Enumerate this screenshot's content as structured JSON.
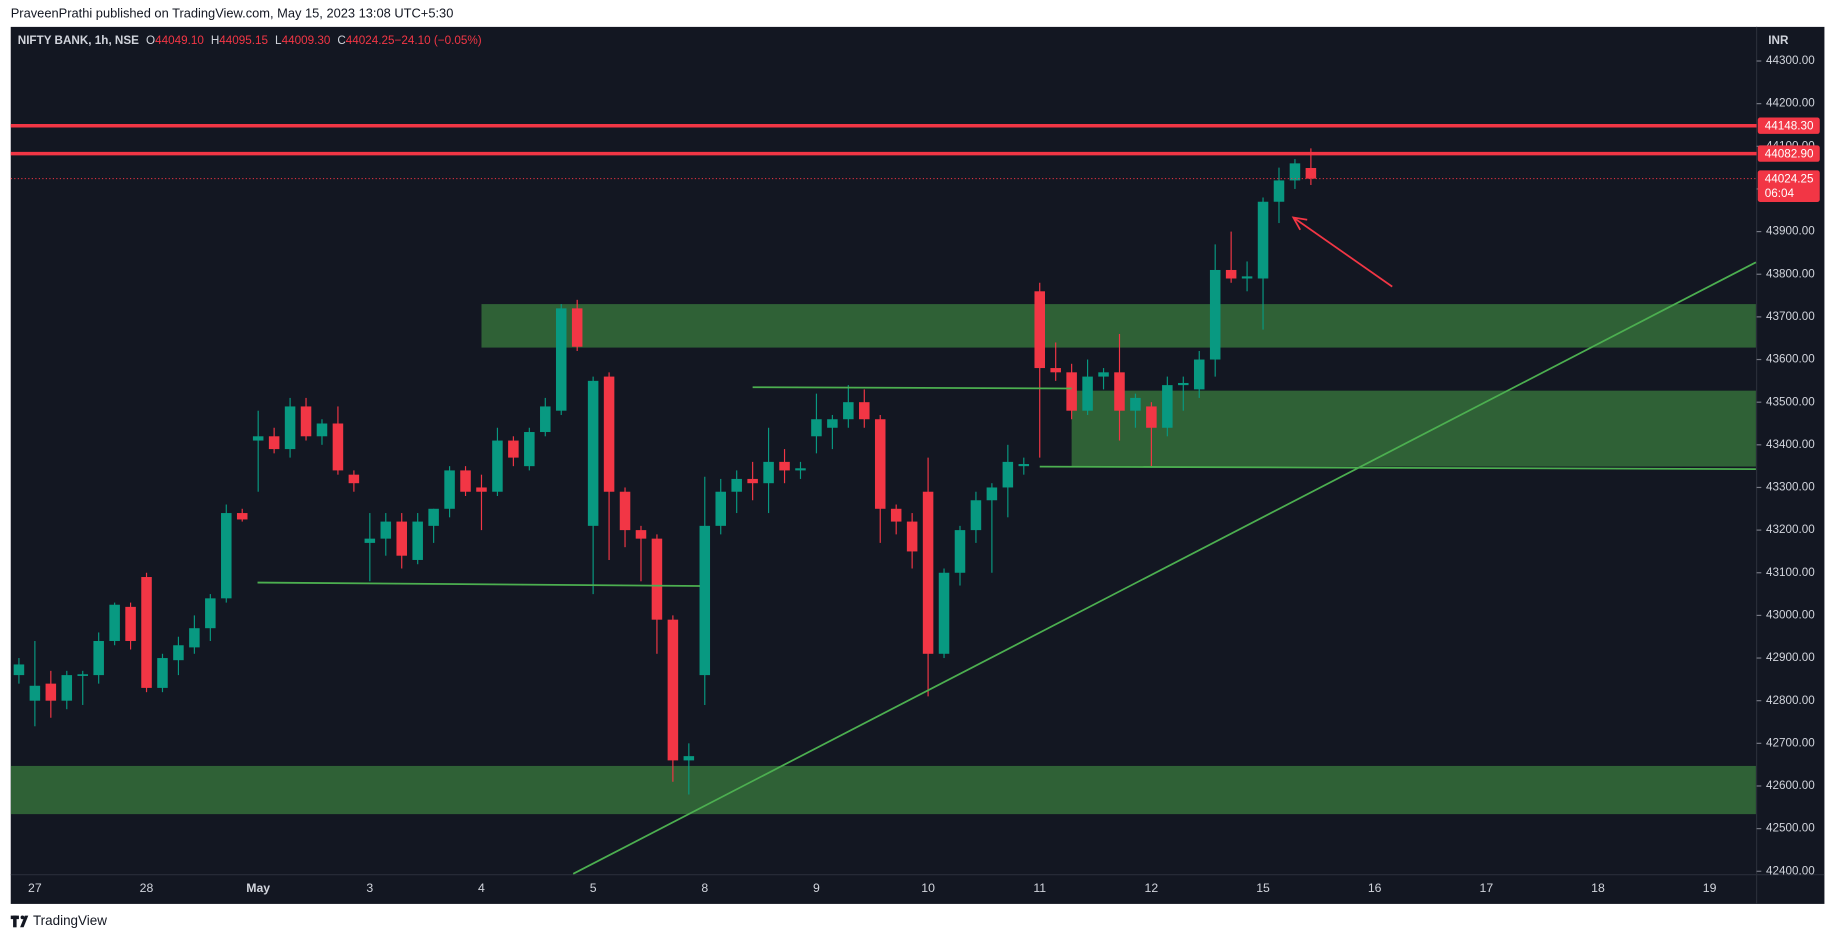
{
  "publisher": "PraveenPrathi published on TradingView.com, May 15, 2023 13:08 UTC+5:30",
  "brand": "TradingView",
  "chart_data": {
    "type": "candlestick",
    "title": "NIFTY BANK, 1h, NSE",
    "ohlc_header": [
      {
        "key": "O",
        "text": "44049.10"
      },
      {
        "key": "H",
        "text": "44095.15"
      },
      {
        "key": "L",
        "text": "44009.30"
      },
      {
        "key": "C",
        "text": "44024.25"
      },
      {
        "key": "",
        "text": "−24.10 (−0.05%)"
      }
    ],
    "currency": "INR",
    "up_color": "#089981",
    "down_color": "#f23645",
    "grid": false,
    "categories": [
      null,
      "27",
      null,
      null,
      null,
      null,
      null,
      null,
      "28",
      null,
      null,
      null,
      null,
      null,
      null,
      "May",
      null,
      null,
      null,
      null,
      null,
      null,
      "3",
      null,
      null,
      null,
      null,
      null,
      null,
      "4",
      null,
      null,
      null,
      null,
      null,
      null,
      "5",
      null,
      null,
      null,
      null,
      null,
      null,
      "8",
      null,
      null,
      null,
      null,
      null,
      null,
      "9",
      null,
      null,
      null,
      null,
      null,
      null,
      "10",
      null,
      null,
      null,
      null,
      null,
      null,
      "11",
      null,
      null,
      null,
      null,
      null,
      null,
      "12",
      null,
      null,
      null,
      null,
      null,
      null,
      "15",
      null,
      null,
      null,
      null,
      null,
      null,
      "16",
      null,
      null,
      null,
      null,
      null,
      null,
      "17",
      null,
      null,
      null,
      null,
      null,
      null,
      "18",
      null,
      null,
      null,
      null,
      null,
      null,
      "19",
      null,
      null
    ],
    "open": [
      42860,
      42800,
      42840,
      42800,
      42858,
      42860,
      42940,
      43020,
      43090,
      42830,
      42895,
      42925,
      42970,
      43040,
      43240,
      43410,
      43420,
      43390,
      43490,
      43420,
      43450,
      43330,
      43170,
      43180,
      43220,
      43130,
      43210,
      43250,
      43340,
      43300,
      43290,
      43410,
      43350,
      43430,
      43480,
      43720,
      43210,
      43560,
      43290,
      43200,
      43180,
      42990,
      42660,
      42860,
      43210,
      43290,
      43320,
      43310,
      43360,
      43340,
      43420,
      43440,
      43460,
      43500,
      43460,
      43250,
      43220,
      43290,
      42910,
      43100,
      43200,
      43270,
      43300,
      43350,
      43760,
      43580,
      43570,
      43480,
      43560,
      43570,
      43480,
      43490,
      43440,
      43540,
      43530,
      43600,
      43810,
      43790,
      43790,
      43970,
      44020,
      44049.1,
      null,
      null,
      null,
      null,
      null,
      null,
      null,
      null,
      null,
      null,
      null,
      null,
      null,
      null,
      null,
      null,
      null,
      null,
      null,
      null,
      null,
      null,
      null,
      null,
      null,
      null,
      null
    ],
    "high": [
      42900,
      42940,
      42870,
      42870,
      42870,
      42960,
      43030,
      43030,
      43100,
      42910,
      42950,
      43000,
      43050,
      43260,
      43250,
      43480,
      43440,
      43510,
      43510,
      43460,
      43490,
      43340,
      43240,
      43240,
      43240,
      43240,
      43250,
      43350,
      43350,
      43330,
      43440,
      43420,
      43440,
      43510,
      43730,
      43740,
      43560,
      43570,
      43300,
      43210,
      43190,
      43000,
      42700,
      43325,
      43320,
      43340,
      43360,
      43440,
      43390,
      43360,
      43520,
      43470,
      43540,
      43530,
      43470,
      43260,
      43240,
      43370,
      43110,
      43210,
      43290,
      43310,
      43400,
      43370,
      43780,
      43640,
      43590,
      43600,
      43580,
      43660,
      43520,
      43500,
      43560,
      43560,
      43620,
      43870,
      43900,
      43830,
      43980,
      44050,
      44070,
      44095.15,
      null,
      null,
      null,
      null,
      null,
      null,
      null,
      null,
      null,
      null,
      null,
      null,
      null,
      null,
      null,
      null,
      null,
      null,
      null,
      null,
      null,
      null,
      null,
      null,
      null,
      null,
      null
    ],
    "low": [
      42840,
      42740,
      42760,
      42780,
      42790,
      42840,
      42930,
      42920,
      42820,
      42820,
      42860,
      42910,
      42940,
      43030,
      43220,
      43290,
      43380,
      43370,
      43410,
      43400,
      43330,
      43290,
      43080,
      43140,
      43110,
      43120,
      43170,
      43230,
      43280,
      43200,
      43280,
      43350,
      43340,
      43420,
      43470,
      43620,
      43050,
      43130,
      43160,
      43080,
      42910,
      42610,
      42580,
      42790,
      43190,
      43240,
      43270,
      43240,
      43310,
      43320,
      43380,
      43390,
      43440,
      43440,
      43170,
      43190,
      43110,
      42810,
      42900,
      43070,
      43170,
      43100,
      43230,
      43330,
      43370,
      43550,
      43460,
      43470,
      43530,
      43410,
      43440,
      43350,
      43420,
      43480,
      43510,
      43560,
      43780,
      43760,
      43670,
      43920,
      44000,
      44009.3,
      null,
      null,
      null,
      null,
      null,
      null,
      null,
      null,
      null,
      null,
      null,
      null,
      null,
      null,
      null,
      null,
      null,
      null,
      null,
      null,
      null,
      null,
      null,
      null,
      null,
      null,
      null
    ],
    "close": [
      42885,
      42835,
      42800,
      42860,
      42862,
      42940,
      43025,
      42940,
      42830,
      42900,
      42930,
      42970,
      43040,
      43240,
      43225,
      43420,
      43390,
      43490,
      43420,
      43450,
      43340,
      43310,
      43180,
      43220,
      43140,
      43220,
      43250,
      43340,
      43290,
      43290,
      43410,
      43370,
      43430,
      43490,
      43720,
      43630,
      43550,
      43290,
      43200,
      43180,
      42990,
      42660,
      42670,
      43210,
      43290,
      43320,
      43310,
      43360,
      43340,
      43345,
      43460,
      43460,
      43500,
      43460,
      43250,
      43220,
      43150,
      42910,
      43100,
      43200,
      43270,
      43300,
      43360,
      43355,
      43580,
      43570,
      43480,
      43560,
      43570,
      43480,
      43510,
      43440,
      43540,
      43545,
      43600,
      43810,
      43790,
      43795,
      43970,
      44020,
      44060,
      44024.25,
      null,
      null,
      null,
      null,
      null,
      null,
      null,
      null,
      null,
      null,
      null,
      null,
      null,
      null,
      null,
      null,
      null,
      null,
      null,
      null,
      null,
      null,
      null,
      null,
      null,
      null,
      null
    ],
    "ylim": [
      42392,
      44380
    ],
    "yticks": [
      {
        "value": 42400,
        "label": "42400.00"
      },
      {
        "value": 42500,
        "label": "42500.00"
      },
      {
        "value": 42600,
        "label": "42600.00"
      },
      {
        "value": 42700,
        "label": "42700.00"
      },
      {
        "value": 42800,
        "label": "42800.00"
      },
      {
        "value": 42900,
        "label": "42900.00"
      },
      {
        "value": 43000,
        "label": "43000.00"
      },
      {
        "value": 43100,
        "label": "43100.00"
      },
      {
        "value": 43200,
        "label": "43200.00"
      },
      {
        "value": 43300,
        "label": "43300.00"
      },
      {
        "value": 43400,
        "label": "43400.00"
      },
      {
        "value": 43500,
        "label": "43500.00"
      },
      {
        "value": 43600,
        "label": "43600.00"
      },
      {
        "value": 43700,
        "label": "43700.00"
      },
      {
        "value": 43800,
        "label": "43800.00"
      },
      {
        "value": 43900,
        "label": "43900.00"
      },
      {
        "value": 44000,
        "label": "44000.00"
      },
      {
        "value": 44100,
        "label": "44100.00"
      },
      {
        "value": 44200,
        "label": "44200.00"
      },
      {
        "value": 44300,
        "label": "44300.00"
      }
    ],
    "zones": [
      {
        "x": [
          29.0,
          108.9
        ],
        "y": [
          43628,
          43730
        ],
        "color": "#2f6136"
      },
      {
        "x": [
          66.0,
          108.9
        ],
        "y": [
          43349,
          43527
        ],
        "color": "#2f6136"
      },
      {
        "x": [
          -0.5,
          108.9
        ],
        "y": [
          42534,
          42647
        ],
        "color": "#2f6136"
      }
    ],
    "lines": [
      {
        "x": [
          34.75,
          108.9
        ],
        "y": [
          42394,
          43828
        ],
        "color": "#4caf50"
      },
      {
        "x": [
          14.96,
          42.7
        ],
        "y": [
          43077,
          43069
        ],
        "color": "#4caf50"
      },
      {
        "x": [
          46.0,
          66.0
        ],
        "y": [
          43535,
          43532
        ],
        "color": "#4caf50"
      },
      {
        "x": [
          64.0,
          108.9
        ],
        "y": [
          43349,
          43343
        ],
        "color": "#4caf50"
      }
    ],
    "arrow": {
      "x": [
        86.1,
        79.9
      ],
      "y": [
        43771,
        43933
      ],
      "color": "#f23645"
    },
    "price_lines": [
      {
        "value": 44148.3,
        "label": "44148.30",
        "color": "#f23645"
      },
      {
        "value": 44082.9,
        "label": "44082.90",
        "color": "#f23645"
      }
    ],
    "last_price": {
      "value": 44024.25,
      "countdown": "06:04",
      "color": "#f23645"
    }
  }
}
